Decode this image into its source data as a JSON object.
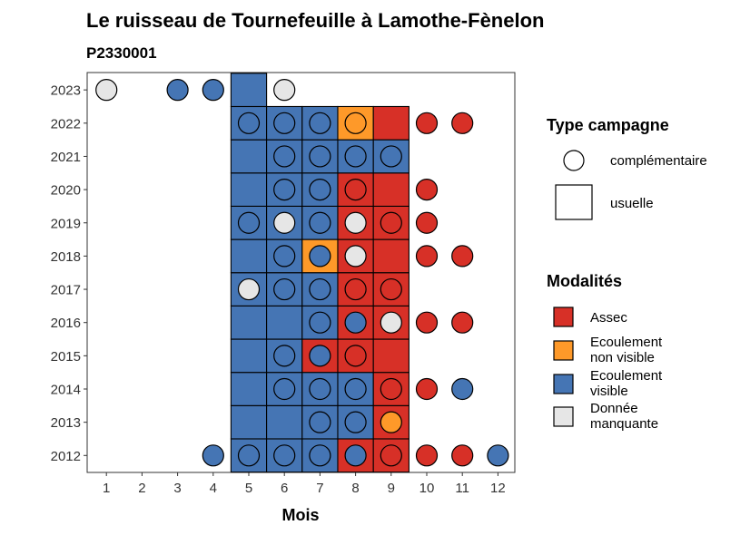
{
  "chart_data": {
    "type": "heatmap",
    "title": "Le ruisseau de Tournefeuille à Lamothe-Fènelon",
    "subtitle": "P2330001",
    "xlabel": "Mois",
    "ylabel": "",
    "x": [
      1,
      2,
      3,
      4,
      5,
      6,
      7,
      8,
      9,
      10,
      11,
      12
    ],
    "y": [
      2012,
      2013,
      2014,
      2015,
      2016,
      2017,
      2018,
      2019,
      2020,
      2021,
      2022,
      2023
    ],
    "grid": false,
    "legend_position": "right",
    "colors": {
      "Assec": "#d73027",
      "Ecoulement non visible": "#fe9929",
      "Ecoulement visible": "#4575b4",
      "Donnée manquante": "#e6e6e6"
    },
    "legends": [
      {
        "title": "Type campagne",
        "items": [
          {
            "label": "complémentaire",
            "shape": "circle"
          },
          {
            "label": "usuelle",
            "shape": "square"
          }
        ]
      },
      {
        "title": "Modalités",
        "items": [
          {
            "label": "Assec",
            "label_lines": [
              "Assec"
            ],
            "color": "#d73027"
          },
          {
            "label": "Ecoulement non visible",
            "label_lines": [
              "Ecoulement",
              "non visible"
            ],
            "color": "#fe9929"
          },
          {
            "label": "Ecoulement visible",
            "label_lines": [
              "Ecoulement",
              "visible"
            ],
            "color": "#4575b4"
          },
          {
            "label": "Donnée manquante",
            "label_lines": [
              "Donnée",
              "manquante"
            ],
            "color": "#e6e6e6"
          }
        ]
      }
    ],
    "usuelle": [
      {
        "year": 2012,
        "cells": [
          [
            5,
            "Ecoulement visible"
          ],
          [
            6,
            "Ecoulement visible"
          ],
          [
            7,
            "Ecoulement visible"
          ],
          [
            8,
            "Assec"
          ],
          [
            9,
            "Assec"
          ]
        ]
      },
      {
        "year": 2013,
        "cells": [
          [
            5,
            "Ecoulement visible"
          ],
          [
            6,
            "Ecoulement visible"
          ],
          [
            7,
            "Ecoulement visible"
          ],
          [
            8,
            "Ecoulement visible"
          ],
          [
            9,
            "Assec"
          ]
        ]
      },
      {
        "year": 2014,
        "cells": [
          [
            5,
            "Ecoulement visible"
          ],
          [
            6,
            "Ecoulement visible"
          ],
          [
            7,
            "Ecoulement visible"
          ],
          [
            8,
            "Ecoulement visible"
          ],
          [
            9,
            "Assec"
          ]
        ]
      },
      {
        "year": 2015,
        "cells": [
          [
            5,
            "Ecoulement visible"
          ],
          [
            6,
            "Ecoulement visible"
          ],
          [
            7,
            "Assec"
          ],
          [
            8,
            "Assec"
          ],
          [
            9,
            "Assec"
          ]
        ]
      },
      {
        "year": 2016,
        "cells": [
          [
            5,
            "Ecoulement visible"
          ],
          [
            6,
            "Ecoulement visible"
          ],
          [
            7,
            "Ecoulement visible"
          ],
          [
            8,
            "Assec"
          ],
          [
            9,
            "Assec"
          ]
        ]
      },
      {
        "year": 2017,
        "cells": [
          [
            5,
            "Ecoulement visible"
          ],
          [
            6,
            "Ecoulement visible"
          ],
          [
            7,
            "Ecoulement visible"
          ],
          [
            8,
            "Assec"
          ],
          [
            9,
            "Assec"
          ]
        ]
      },
      {
        "year": 2018,
        "cells": [
          [
            5,
            "Ecoulement visible"
          ],
          [
            6,
            "Ecoulement visible"
          ],
          [
            7,
            "Ecoulement non visible"
          ],
          [
            8,
            "Assec"
          ],
          [
            9,
            "Assec"
          ]
        ]
      },
      {
        "year": 2019,
        "cells": [
          [
            5,
            "Ecoulement visible"
          ],
          [
            6,
            "Ecoulement visible"
          ],
          [
            7,
            "Ecoulement visible"
          ],
          [
            8,
            "Assec"
          ],
          [
            9,
            "Assec"
          ]
        ]
      },
      {
        "year": 2020,
        "cells": [
          [
            5,
            "Ecoulement visible"
          ],
          [
            6,
            "Ecoulement visible"
          ],
          [
            7,
            "Ecoulement visible"
          ],
          [
            8,
            "Assec"
          ],
          [
            9,
            "Assec"
          ]
        ]
      },
      {
        "year": 2021,
        "cells": [
          [
            5,
            "Ecoulement visible"
          ],
          [
            6,
            "Ecoulement visible"
          ],
          [
            7,
            "Ecoulement visible"
          ],
          [
            8,
            "Ecoulement visible"
          ],
          [
            9,
            "Ecoulement visible"
          ]
        ]
      },
      {
        "year": 2022,
        "cells": [
          [
            5,
            "Ecoulement visible"
          ],
          [
            6,
            "Ecoulement visible"
          ],
          [
            7,
            "Ecoulement visible"
          ],
          [
            8,
            "Ecoulement non visible"
          ],
          [
            9,
            "Assec"
          ]
        ]
      },
      {
        "year": 2023,
        "cells": [
          [
            5,
            "Ecoulement visible"
          ]
        ]
      }
    ],
    "complementaire": [
      {
        "year": 2012,
        "points": [
          [
            4,
            "Ecoulement visible"
          ],
          [
            5,
            "Ecoulement visible"
          ],
          [
            6,
            "Ecoulement visible"
          ],
          [
            7,
            "Ecoulement visible"
          ],
          [
            8,
            "Ecoulement visible"
          ],
          [
            9,
            "Assec"
          ],
          [
            10,
            "Assec"
          ],
          [
            11,
            "Assec"
          ],
          [
            12,
            "Ecoulement visible"
          ]
        ]
      },
      {
        "year": 2013,
        "points": [
          [
            7,
            "Ecoulement visible"
          ],
          [
            8,
            "Ecoulement visible"
          ],
          [
            9,
            "Ecoulement non visible"
          ]
        ]
      },
      {
        "year": 2014,
        "points": [
          [
            6,
            "Ecoulement visible"
          ],
          [
            7,
            "Ecoulement visible"
          ],
          [
            8,
            "Ecoulement visible"
          ],
          [
            9,
            "Assec"
          ],
          [
            10,
            "Assec"
          ],
          [
            11,
            "Ecoulement visible"
          ]
        ]
      },
      {
        "year": 2015,
        "points": [
          [
            6,
            "Ecoulement visible"
          ],
          [
            7,
            "Ecoulement visible"
          ],
          [
            8,
            "Assec"
          ]
        ]
      },
      {
        "year": 2016,
        "points": [
          [
            7,
            "Ecoulement visible"
          ],
          [
            8,
            "Ecoulement visible"
          ],
          [
            9,
            "Donnée manquante"
          ],
          [
            10,
            "Assec"
          ],
          [
            11,
            "Assec"
          ]
        ]
      },
      {
        "year": 2017,
        "points": [
          [
            5,
            "Donnée manquante"
          ],
          [
            6,
            "Ecoulement visible"
          ],
          [
            7,
            "Ecoulement visible"
          ],
          [
            8,
            "Assec"
          ],
          [
            9,
            "Assec"
          ]
        ]
      },
      {
        "year": 2018,
        "points": [
          [
            6,
            "Ecoulement visible"
          ],
          [
            7,
            "Ecoulement visible"
          ],
          [
            8,
            "Donnée manquante"
          ],
          [
            10,
            "Assec"
          ],
          [
            11,
            "Assec"
          ]
        ]
      },
      {
        "year": 2019,
        "points": [
          [
            5,
            "Ecoulement visible"
          ],
          [
            6,
            "Donnée manquante"
          ],
          [
            7,
            "Ecoulement visible"
          ],
          [
            8,
            "Donnée manquante"
          ],
          [
            9,
            "Assec"
          ],
          [
            10,
            "Assec"
          ]
        ]
      },
      {
        "year": 2020,
        "points": [
          [
            6,
            "Ecoulement visible"
          ],
          [
            7,
            "Ecoulement visible"
          ],
          [
            8,
            "Assec"
          ],
          [
            10,
            "Assec"
          ]
        ]
      },
      {
        "year": 2021,
        "points": [
          [
            6,
            "Ecoulement visible"
          ],
          [
            7,
            "Ecoulement visible"
          ],
          [
            8,
            "Ecoulement visible"
          ],
          [
            9,
            "Ecoulement visible"
          ]
        ]
      },
      {
        "year": 2022,
        "points": [
          [
            5,
            "Ecoulement visible"
          ],
          [
            6,
            "Ecoulement visible"
          ],
          [
            7,
            "Ecoulement visible"
          ],
          [
            8,
            "Ecoulement non visible"
          ],
          [
            10,
            "Assec"
          ],
          [
            11,
            "Assec"
          ]
        ]
      },
      {
        "year": 2023,
        "points": [
          [
            1,
            "Donnée manquante"
          ],
          [
            3,
            "Ecoulement visible"
          ],
          [
            4,
            "Ecoulement visible"
          ],
          [
            6,
            "Donnée manquante"
          ]
        ]
      }
    ]
  }
}
